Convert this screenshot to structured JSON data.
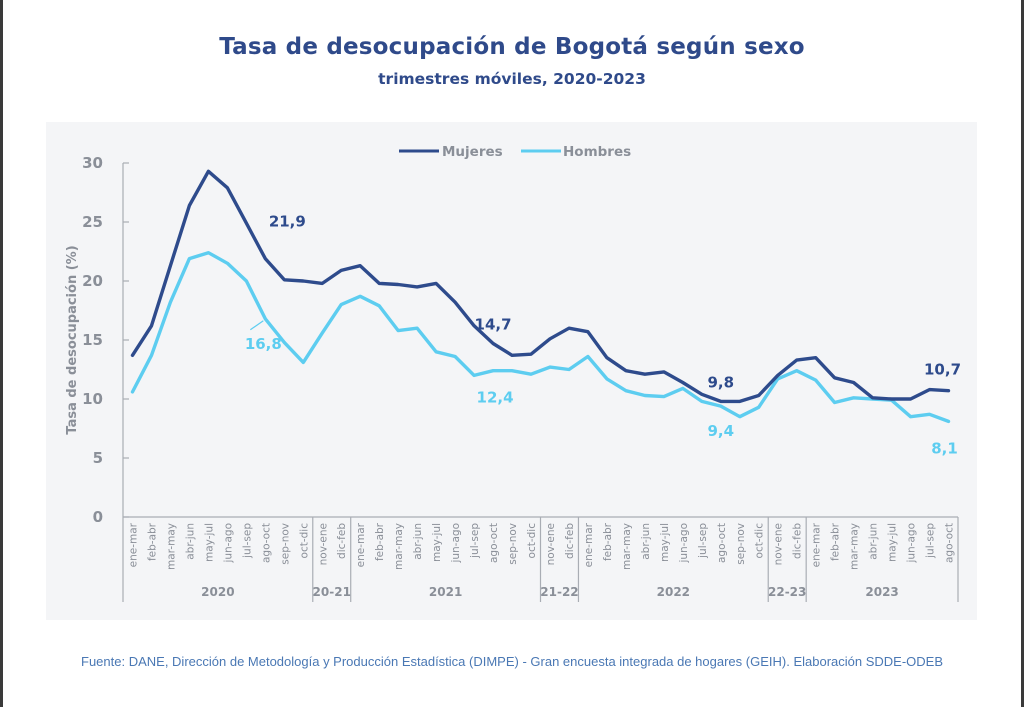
{
  "header": {
    "title": "Tasa de desocupación de Bogotá según sexo",
    "subtitle": "trimestres móviles, 2020-2023"
  },
  "footer": {
    "source": "Fuente: DANE, Dirección de Metodología y Producción Estadística (DIMPE) - Gran encuesta integrada de hogares (GEIH). Elaboración SDDE-ODEB"
  },
  "colors": {
    "mujeres": "#2e4b8c",
    "hombres": "#5dcdf0",
    "axis": "#a9adb4",
    "text_muted": "#8a8f98",
    "title": "#2f4a8a",
    "panel_bg": "#f4f5f7"
  },
  "chart_data": {
    "type": "line",
    "title": "Tasa de desocupación de Bogotá según sexo",
    "subtitle": "trimestres móviles, 2020-2023",
    "xlabel": "",
    "ylabel": "Tasa de desocupación (%)",
    "ylim": [
      0,
      30
    ],
    "yticks": [
      0,
      5,
      10,
      15,
      20,
      25,
      30
    ],
    "grid": false,
    "legend_position": "top-center",
    "categories": [
      "ene-mar",
      "feb-abr",
      "mar-may",
      "abr-jun",
      "may-jul",
      "jun-ago",
      "jul-sep",
      "ago-oct",
      "sep-nov",
      "oct-dic",
      "nov-ene",
      "dic-feb",
      "ene-mar",
      "feb-abr",
      "mar-may",
      "abr-jun",
      "may-jul",
      "jun-ago",
      "jul-sep",
      "ago-oct",
      "sep-nov",
      "oct-dic",
      "nov-ene",
      "dic-feb",
      "ene-mar",
      "feb-abr",
      "mar-may",
      "abr-jun",
      "may-jul",
      "jun-ago",
      "jul-sep",
      "ago-oct",
      "sep-nov",
      "oct-dic",
      "nov-ene",
      "dic-feb",
      "ene-mar",
      "feb-abr",
      "mar-may",
      "abr-jun",
      "may-jul",
      "jun-ago",
      "jul-sep",
      "ago-oct"
    ],
    "groups": [
      {
        "label": "2020",
        "count": 10
      },
      {
        "label": "20-21",
        "count": 2
      },
      {
        "label": "2021",
        "count": 10
      },
      {
        "label": "21-22",
        "count": 2
      },
      {
        "label": "2022",
        "count": 10
      },
      {
        "label": "22-23",
        "count": 2
      },
      {
        "label": "2023",
        "count": 8
      }
    ],
    "series": [
      {
        "name": "Mujeres",
        "color": "#2e4b8c",
        "values": [
          13.7,
          16.2,
          21.3,
          26.4,
          29.3,
          27.9,
          24.9,
          21.9,
          20.1,
          20.0,
          19.8,
          20.9,
          21.3,
          19.8,
          19.7,
          19.5,
          19.8,
          18.2,
          16.2,
          14.7,
          13.7,
          13.8,
          15.1,
          16.0,
          15.7,
          13.5,
          12.4,
          12.1,
          12.3,
          11.4,
          10.4,
          9.8,
          9.8,
          10.3,
          12.0,
          13.3,
          13.5,
          11.8,
          11.4,
          10.1,
          10.0,
          10.0,
          10.8,
          10.7
        ]
      },
      {
        "name": "Hombres",
        "color": "#5dcdf0",
        "values": [
          10.6,
          13.7,
          18.2,
          21.9,
          22.4,
          21.5,
          20.0,
          16.8,
          14.8,
          13.1,
          15.6,
          18.0,
          18.7,
          17.9,
          15.8,
          16.0,
          14.0,
          13.6,
          12.0,
          12.4,
          12.4,
          12.1,
          12.7,
          12.5,
          13.6,
          11.7,
          10.7,
          10.3,
          10.2,
          10.9,
          9.8,
          9.4,
          8.5,
          9.3,
          11.7,
          12.4,
          11.6,
          9.7,
          10.1,
          10.0,
          9.9,
          8.5,
          8.7,
          8.1
        ]
      }
    ],
    "annotations": [
      {
        "series": "Mujeres",
        "category_index": 7,
        "text": "21,9"
      },
      {
        "series": "Hombres",
        "category_index": 7,
        "text": "16,8"
      },
      {
        "series": "Mujeres",
        "category_index": 19,
        "text": "14,7"
      },
      {
        "series": "Hombres",
        "category_index": 19,
        "text": "12,4"
      },
      {
        "series": "Mujeres",
        "category_index": 31,
        "text": "9,8"
      },
      {
        "series": "Hombres",
        "category_index": 31,
        "text": "9,4"
      },
      {
        "series": "Mujeres",
        "category_index": 43,
        "text": "10,7"
      },
      {
        "series": "Hombres",
        "category_index": 43,
        "text": "8,1"
      }
    ]
  }
}
